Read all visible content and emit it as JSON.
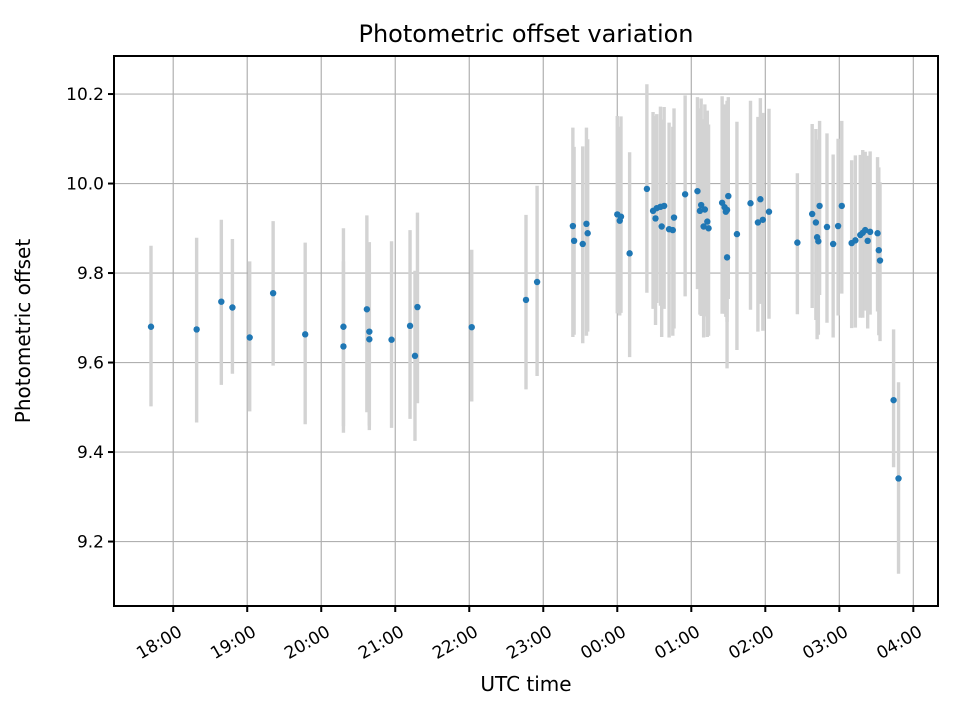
{
  "title": "Photometric offset variation",
  "chart_data": {
    "type": "scatter",
    "title": "Photometric offset variation",
    "xlabel": "UTC time",
    "ylabel": "Photometric offset",
    "x_tick_labels": [
      "18:00",
      "19:00",
      "20:00",
      "21:00",
      "22:00",
      "23:00",
      "00:00",
      "01:00",
      "02:00",
      "03:00",
      "04:00"
    ],
    "y_ticks": [
      9.2,
      9.4,
      9.6,
      9.8,
      10.0,
      10.2
    ],
    "xlim_minutes_from_1800": [
      -48,
      620
    ],
    "ylim": [
      9.056,
      10.285
    ],
    "grid": true,
    "legend": "none",
    "marker_color": "#1f77b4",
    "errorbar_color": "#d3d3d3",
    "grid_color": "#b0b0b0",
    "points_format": [
      "utc_time",
      "value",
      "err_plus",
      "err_minus"
    ],
    "points": [
      [
        "17:42",
        9.68,
        0.181,
        0.178
      ],
      [
        "18:19",
        9.674,
        0.205,
        0.208
      ],
      [
        "18:39",
        9.736,
        0.183,
        0.186
      ],
      [
        "18:48",
        9.723,
        0.153,
        0.148
      ],
      [
        "19:02",
        9.656,
        0.17,
        0.165
      ],
      [
        "19:21",
        9.755,
        0.161,
        0.162
      ],
      [
        "19:47",
        9.663,
        0.205,
        0.201
      ],
      [
        "20:18",
        9.68,
        0.22,
        0.222
      ],
      [
        "20:18",
        9.636,
        0.19,
        0.193
      ],
      [
        "20:37",
        9.719,
        0.21,
        0.23
      ],
      [
        "20:39",
        9.669,
        0.2,
        0.21
      ],
      [
        "20:39",
        9.652,
        0.192,
        0.203
      ],
      [
        "20:57",
        9.651,
        0.22,
        0.197
      ],
      [
        "21:12",
        9.682,
        0.214,
        0.208
      ],
      [
        "21:16",
        9.615,
        0.19,
        0.19
      ],
      [
        "21:18",
        9.724,
        0.211,
        0.215
      ],
      [
        "22:02",
        9.679,
        0.173,
        0.166
      ],
      [
        "22:46",
        9.74,
        0.19,
        0.2
      ],
      [
        "22:55",
        9.78,
        0.215,
        0.21
      ],
      [
        "23:24",
        9.905,
        0.22,
        0.248
      ],
      [
        "23:25",
        9.872,
        0.21,
        0.21
      ],
      [
        "23:32",
        9.865,
        0.218,
        0.222
      ],
      [
        "23:35",
        9.91,
        0.215,
        0.25
      ],
      [
        "23:36",
        9.889,
        0.21,
        0.22
      ],
      [
        "00:00",
        9.931,
        0.22,
        0.221
      ],
      [
        "00:02",
        9.917,
        0.21,
        0.212
      ],
      [
        "00:03",
        9.926,
        0.224,
        0.215
      ],
      [
        "00:10",
        9.844,
        0.226,
        0.232
      ],
      [
        "00:24",
        9.988,
        0.234,
        0.232
      ],
      [
        "00:29",
        9.939,
        0.221,
        0.219
      ],
      [
        "00:31",
        9.922,
        0.229,
        0.238
      ],
      [
        "00:32",
        9.945,
        0.21,
        0.212
      ],
      [
        "00:35",
        9.948,
        0.224,
        0.221
      ],
      [
        "00:36",
        9.904,
        0.239,
        0.247
      ],
      [
        "00:38",
        9.95,
        0.221,
        0.23
      ],
      [
        "00:42",
        9.898,
        0.238,
        0.242
      ],
      [
        "00:45",
        9.896,
        0.231,
        0.236
      ],
      [
        "00:46",
        9.924,
        0.244,
        0.248
      ],
      [
        "00:55",
        9.976,
        0.221,
        0.228
      ],
      [
        "01:05",
        9.983,
        0.21,
        0.219
      ],
      [
        "01:07",
        9.939,
        0.229,
        0.232
      ],
      [
        "01:08",
        9.952,
        0.238,
        0.248
      ],
      [
        "01:10",
        9.904,
        0.24,
        0.248
      ],
      [
        "01:11",
        9.942,
        0.235,
        0.239
      ],
      [
        "01:13",
        9.915,
        0.248,
        0.258
      ],
      [
        "01:14",
        9.9,
        0.232,
        0.24
      ],
      [
        "01:25",
        9.957,
        0.238,
        0.248
      ],
      [
        "01:27",
        9.947,
        0.23,
        0.238
      ],
      [
        "01:28",
        9.937,
        0.231,
        0.235
      ],
      [
        "01:29",
        9.941,
        0.244,
        0.25
      ],
      [
        "01:29",
        9.835,
        0.239,
        0.248
      ],
      [
        "01:30",
        9.972,
        0.221,
        0.23
      ],
      [
        "01:37",
        9.887,
        0.251,
        0.259
      ],
      [
        "01:48",
        9.956,
        0.229,
        0.238
      ],
      [
        "01:54",
        9.913,
        0.236,
        0.244
      ],
      [
        "01:56",
        9.965,
        0.226,
        0.234
      ],
      [
        "01:58",
        9.919,
        0.239,
        0.248
      ],
      [
        "02:03",
        9.937,
        0.23,
        0.239
      ],
      [
        "02:26",
        9.868,
        0.155,
        0.16
      ],
      [
        "02:38",
        9.932,
        0.201,
        0.21
      ],
      [
        "02:41",
        9.913,
        0.209,
        0.218
      ],
      [
        "02:42",
        9.88,
        0.218,
        0.228
      ],
      [
        "02:43",
        9.871,
        0.2,
        0.209
      ],
      [
        "02:44",
        9.95,
        0.19,
        0.199
      ],
      [
        "02:50",
        9.903,
        0.209,
        0.214
      ],
      [
        "02:55",
        9.865,
        0.2,
        0.209
      ],
      [
        "02:59",
        9.905,
        0.195,
        0.2
      ],
      [
        "03:02",
        9.95,
        0.19,
        0.196
      ],
      [
        "03:10",
        9.867,
        0.185,
        0.19
      ],
      [
        "03:13",
        9.873,
        0.19,
        0.195
      ],
      [
        "03:17",
        9.885,
        0.179,
        0.185
      ],
      [
        "03:19",
        9.89,
        0.185,
        0.19
      ],
      [
        "03:21",
        9.896,
        0.175,
        0.18
      ],
      [
        "03:23",
        9.872,
        0.19,
        0.196
      ],
      [
        "03:25",
        9.892,
        0.18,
        0.185
      ],
      [
        "03:31",
        9.889,
        0.17,
        0.175
      ],
      [
        "03:32",
        9.851,
        0.185,
        0.19
      ],
      [
        "03:33",
        9.828,
        0.175,
        0.18
      ],
      [
        "03:44",
        9.516,
        0.158,
        0.15
      ],
      [
        "03:48",
        9.341,
        0.215,
        0.213
      ]
    ]
  }
}
